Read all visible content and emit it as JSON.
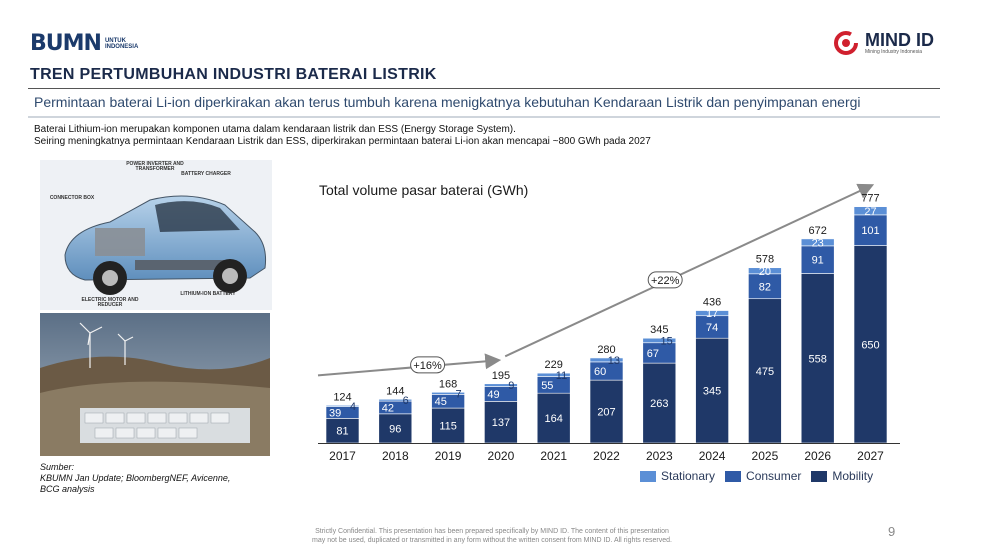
{
  "header": {
    "bumn_logo_text": "BUMN",
    "bumn_logo_sub1": "UNTUK",
    "bumn_logo_sub2": "INDONESIA",
    "mind_logo_text": "MIND ID",
    "mind_logo_sub": "Mining Industry Indonesia",
    "title": "TREN PERTUMBUHAN INDUSTRI BATERAI LISTRIK",
    "subtitle": "Permintaan baterai Li-ion diperkirakan akan terus tumbuh karena menigkatnya kebutuhan Kendaraan Listrik dan penyimpanan energi"
  },
  "body": {
    "line1": "Baterai Lithium-ion merupakan komponen utama dalam kendaraan listrik dan ESS (Energy Storage System).",
    "line2": "Seiring meningkatnya permintaan Kendaraan Listrik dan ESS, diperkirakan permintaan baterai Li-ion akan mencapai ~800 GWh pada 2027"
  },
  "car_labels": {
    "power_inverter": "POWER INVERTER AND TRANSFORMER",
    "battery_charger": "BATTERY CHARGER",
    "connector_box": "CONNECTOR BOX",
    "electric_motor": "ELECTRIC MOTOR AND REDUCER",
    "lithium_battery": "LITHIUM-ION BATTERY"
  },
  "source": {
    "label": "Sumber:",
    "line1": "KBUMN Jan Update; BloombergNEF, Avicenne,",
    "line2": "BCG analysis"
  },
  "footer": {
    "line1": "Strictly Confidential. This presentation has been prepared specifically by MIND ID. The content of this presentation",
    "line2": "may not be used, duplicated or transmitted in any form without the written consent from MIND ID. All rights reserved.",
    "page": "9"
  },
  "chart_data": {
    "type": "bar",
    "stacked": true,
    "title": "Total volume pasar baterai (GWh)",
    "categories": [
      "2017",
      "2018",
      "2019",
      "2020",
      "2021",
      "2022",
      "2023",
      "2024",
      "2025",
      "2026",
      "2027"
    ],
    "series": [
      {
        "name": "Mobility",
        "color": "#1f3868",
        "values": [
          81,
          96,
          115,
          137,
          164,
          207,
          263,
          345,
          475,
          558,
          650
        ]
      },
      {
        "name": "Consumer",
        "color": "#2f5aa6",
        "values": [
          39,
          42,
          45,
          49,
          55,
          60,
          67,
          74,
          82,
          91,
          101
        ]
      },
      {
        "name": "Stationary",
        "color": "#5b8fd6",
        "values": [
          4,
          6,
          7,
          9,
          11,
          13,
          15,
          17,
          20,
          23,
          27
        ]
      }
    ],
    "totals": [
      124,
      144,
      168,
      195,
      229,
      280,
      345,
      436,
      578,
      672,
      777
    ],
    "legend_order": [
      "Stationary",
      "Consumer",
      "Mobility"
    ],
    "ylim": [
      0,
      800
    ],
    "grid": false,
    "legend_position": "bottom-right",
    "annotations": [
      {
        "text": "+16%",
        "from": "2017",
        "to": "2021"
      },
      {
        "text": "+22%",
        "from": "2021",
        "to": "2027"
      }
    ]
  }
}
